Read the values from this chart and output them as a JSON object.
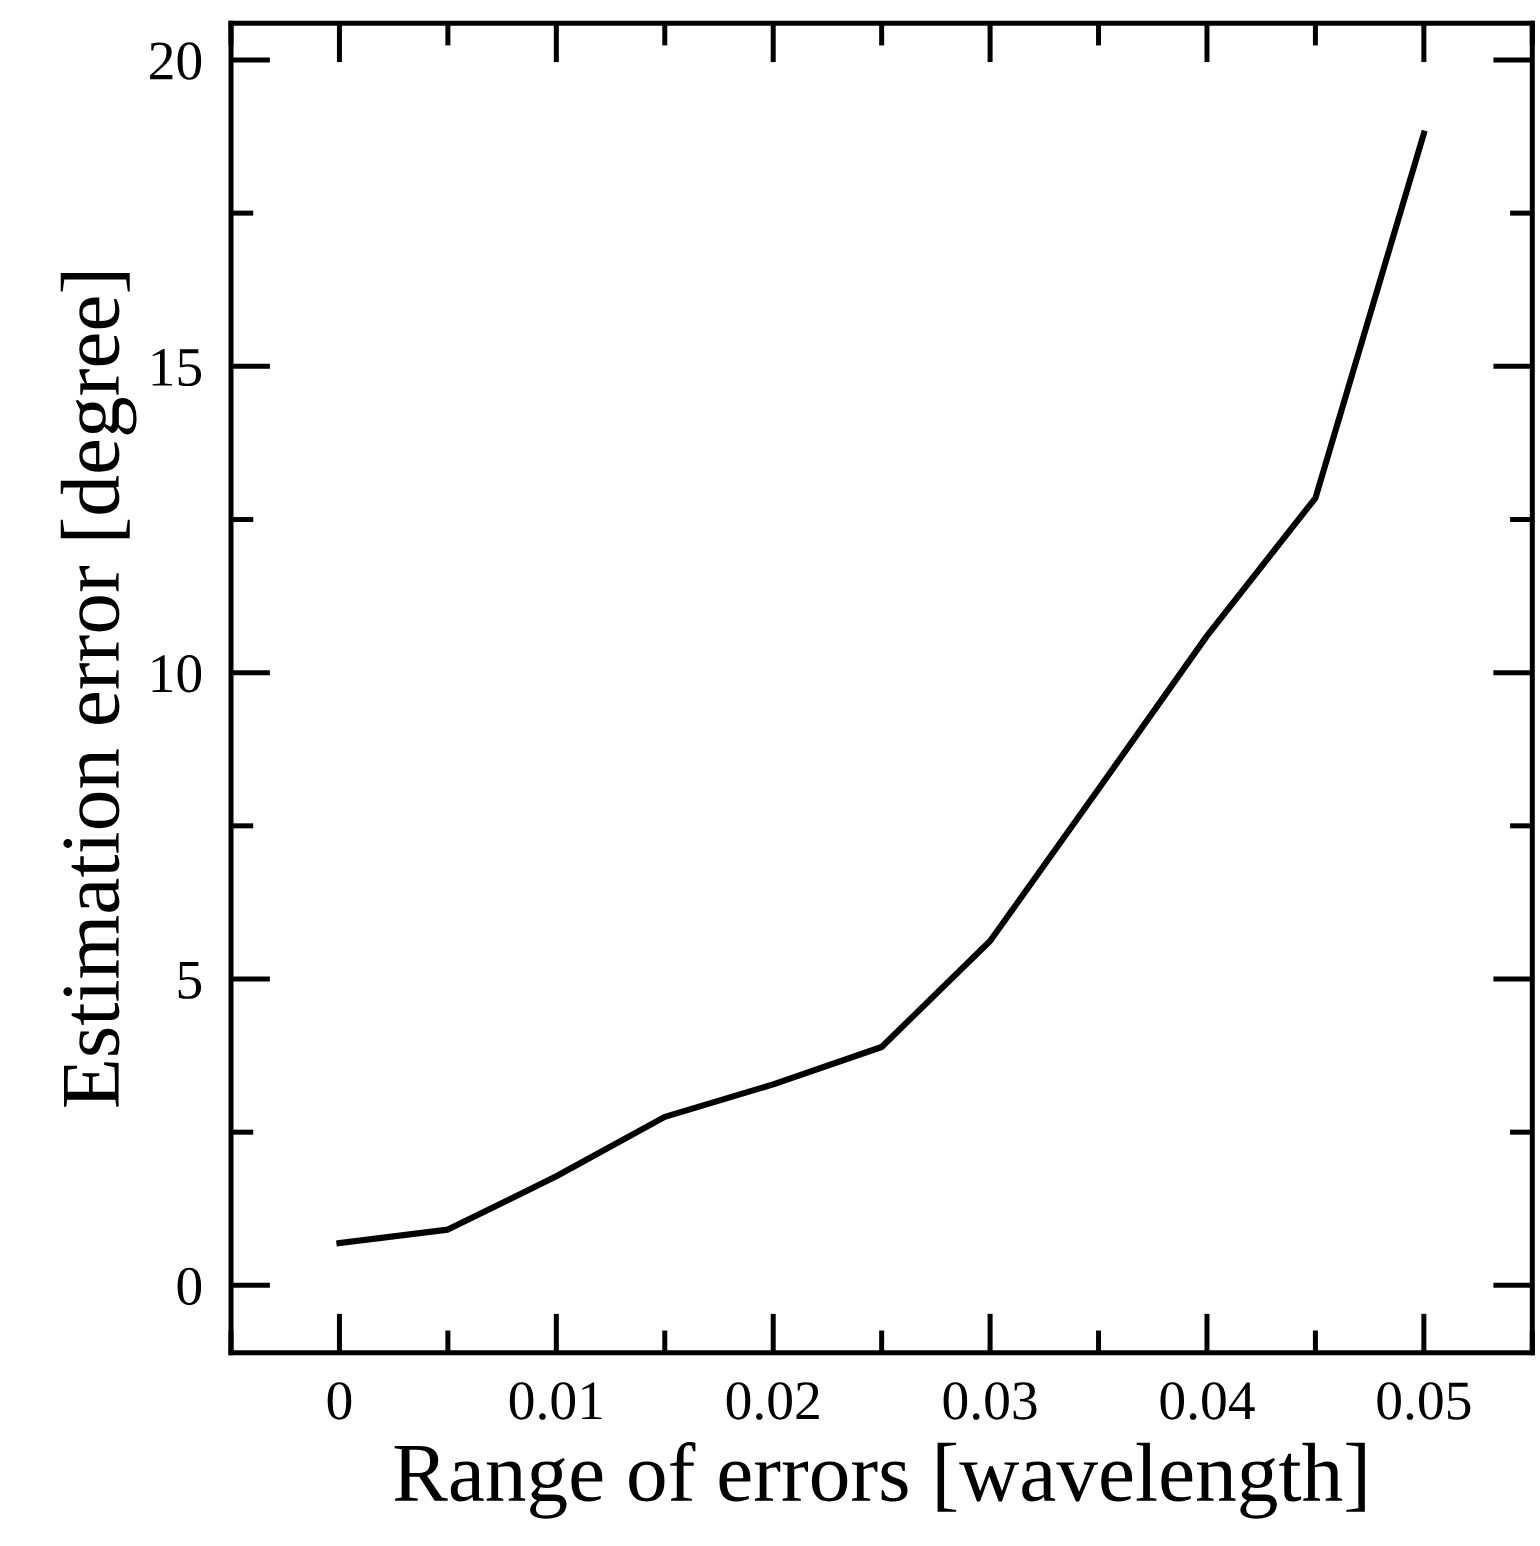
{
  "chart_data": {
    "type": "line",
    "xlabel": "Range of errors [wavelength]",
    "ylabel": "Estimation error [degree]",
    "x": [
      0,
      0.005,
      0.01,
      0.015,
      0.02,
      0.025,
      0.03,
      0.035,
      0.04,
      0.045,
      0.05
    ],
    "series": [
      {
        "color": "#000000",
        "values": [
          0.69,
          0.91,
          1.78,
          2.75,
          3.28,
          3.89,
          5.62,
          8.1,
          10.6,
          12.85,
          18.8
        ]
      }
    ],
    "xlim": [
      -0.005,
      0.055
    ],
    "xticks": [
      0,
      0.01,
      0.02,
      0.03,
      0.04,
      0.05
    ],
    "ylim": [
      -1.1,
      20.6
    ],
    "yticks": [
      0,
      5,
      10,
      15,
      20
    ],
    "grid": false,
    "legend": false,
    "marker": "none",
    "line_style": "solid"
  }
}
